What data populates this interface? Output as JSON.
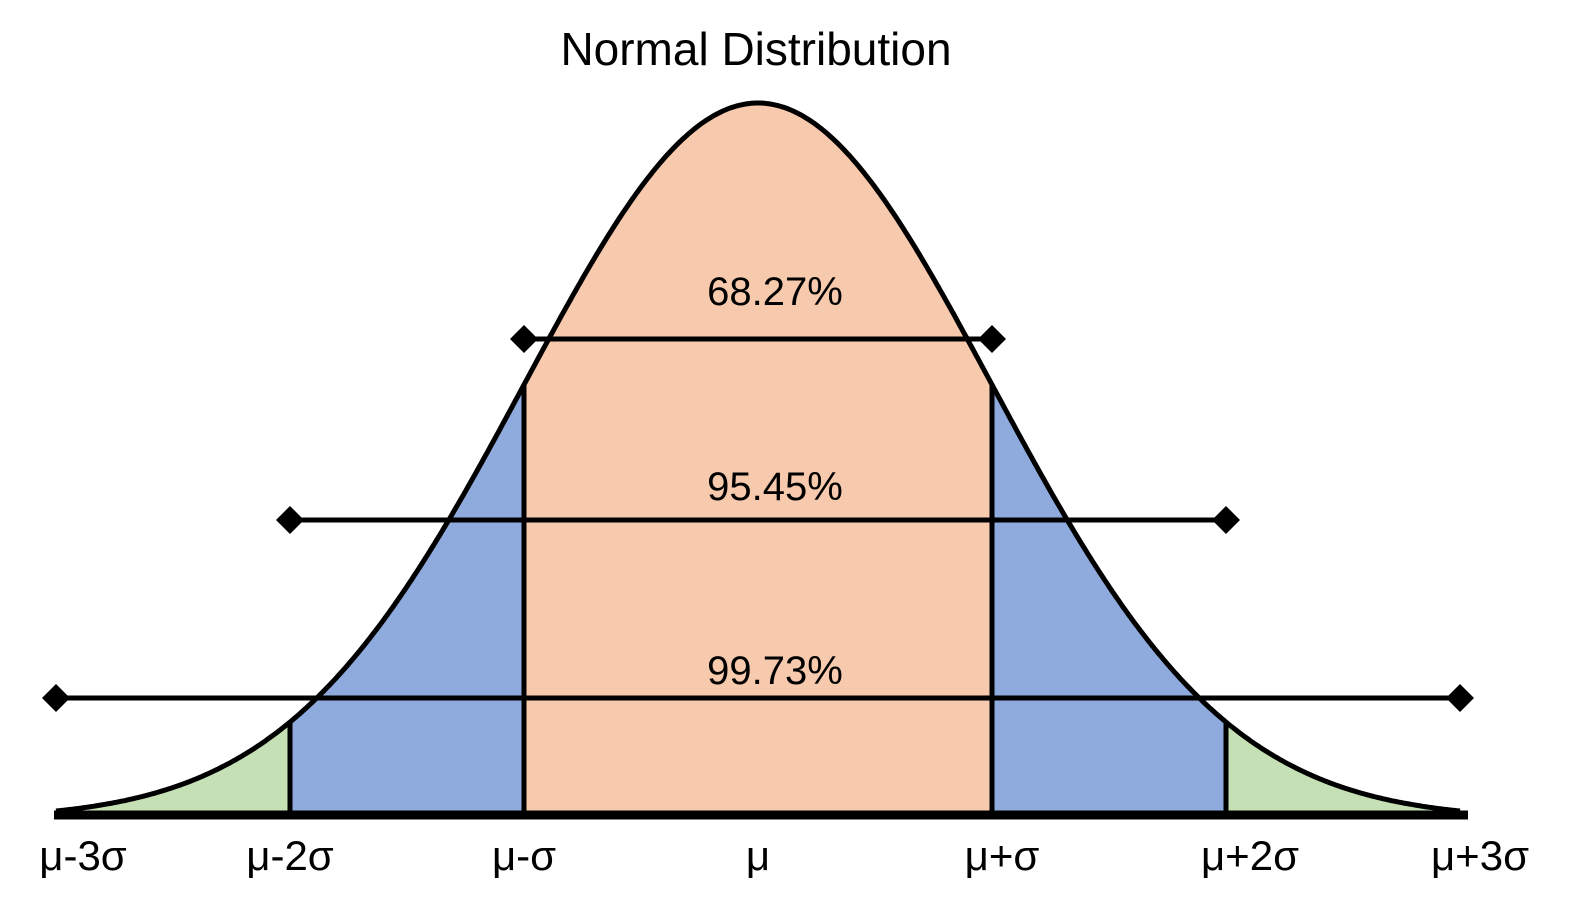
{
  "title": "Normal Distribution",
  "ticks": [
    "μ-3σ",
    "μ-2σ",
    "μ-σ",
    "μ",
    "μ+σ",
    "μ+2σ",
    "μ+3σ"
  ],
  "intervals": [
    {
      "label": "68.27%",
      "k": 1
    },
    {
      "label": "95.45%",
      "k": 2
    },
    {
      "label": "99.73%",
      "k": 3
    }
  ],
  "colors": {
    "within_1_sigma": "#f7c9ad",
    "within_2_sigma": "#8faadc",
    "within_3_sigma": "#c5e0b4",
    "outline": "#000000"
  }
}
